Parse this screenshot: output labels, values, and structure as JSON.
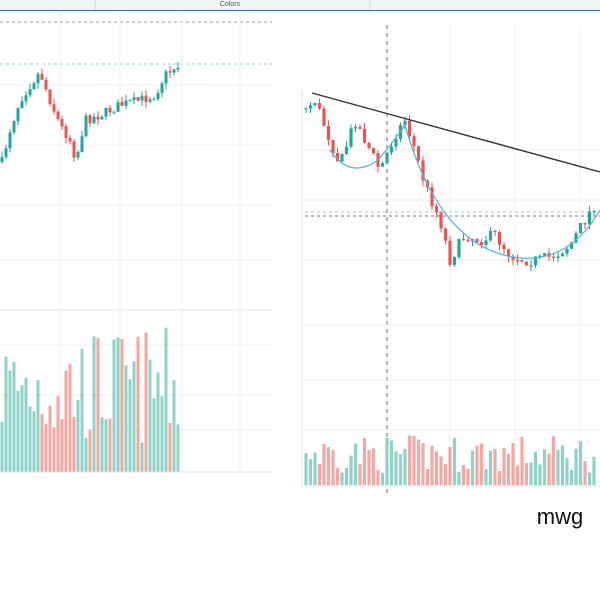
{
  "toolbar": {
    "label": "Colors"
  },
  "caption": "mwg"
}
